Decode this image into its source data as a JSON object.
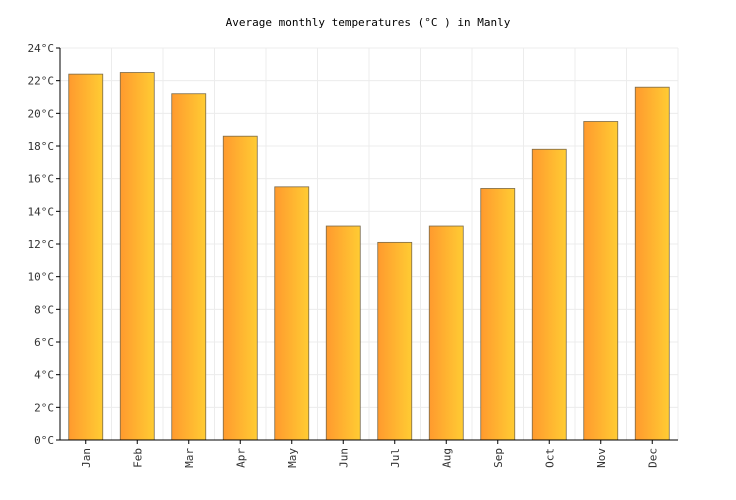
{
  "chart_data": {
    "type": "bar",
    "title": "Average monthly temperatures (°C ) in Manly",
    "xlabel": "",
    "ylabel": "",
    "categories": [
      "Jan",
      "Feb",
      "Mar",
      "Apr",
      "May",
      "Jun",
      "Jul",
      "Aug",
      "Sep",
      "Oct",
      "Nov",
      "Dec"
    ],
    "values": [
      22.4,
      22.5,
      21.2,
      18.6,
      15.5,
      13.1,
      12.1,
      13.1,
      15.4,
      17.8,
      19.5,
      21.6
    ],
    "ylim": [
      0,
      24
    ],
    "yticks": [
      "0°C",
      "2°C",
      "4°C",
      "6°C",
      "8°C",
      "10°C",
      "12°C",
      "14°C",
      "16°C",
      "18°C",
      "20°C",
      "22°C",
      "24°C"
    ],
    "grid": true,
    "legend": "none",
    "colors": {
      "bar_start": "#ff9a2e",
      "bar_end": "#ffcc33",
      "bar_stroke": "#7a6a4a",
      "grid": "#ececec",
      "axis": "#000000"
    }
  }
}
